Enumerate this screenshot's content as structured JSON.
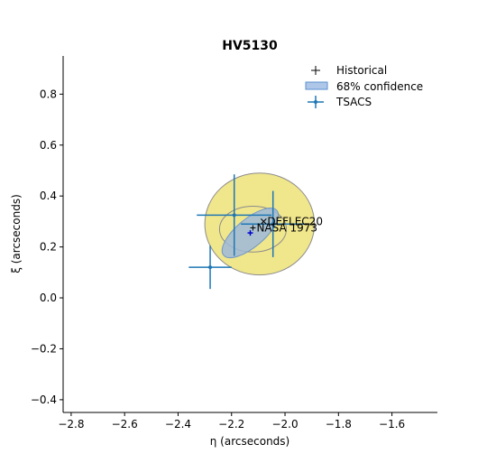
{
  "chart_data": {
    "type": "scatter",
    "title": "HV5130",
    "xlabel": "η (arcseconds)",
    "ylabel": "ξ (arcseconds)",
    "xlim": [
      -2.83,
      -1.43
    ],
    "ylim": [
      -0.45,
      0.95
    ],
    "x_ticks": [
      -2.8,
      -2.6,
      -2.4,
      -2.2,
      -2.0,
      -1.8,
      -1.6
    ],
    "x_tick_labels": [
      "−2.8",
      "−2.6",
      "−2.4",
      "−2.2",
      "−2.0",
      "−1.8",
      "−1.6"
    ],
    "y_ticks": [
      -0.4,
      -0.2,
      0.0,
      0.2,
      0.4,
      0.6,
      0.8
    ],
    "y_tick_labels": [
      "−0.4",
      "−0.2",
      "0.0",
      "0.2",
      "0.4",
      "0.6",
      "0.8"
    ],
    "spines": "left-bottom",
    "grid": false,
    "legend_placement": "top-right",
    "legend": [
      {
        "label": "Historical",
        "marker": "plus",
        "color": "#000000"
      },
      {
        "label": "68% confidence",
        "marker": "patch",
        "color": "#aec7e8"
      },
      {
        "label": "TSACS",
        "marker": "errorbar",
        "color": "#1f77b4"
      }
    ],
    "colors": {
      "tsacs": "#1f77b4",
      "confidence_fill": "#9db8d9",
      "halo_fill": "#f0e68c",
      "halo_edge": "#8c8c8c",
      "historical": "#000000",
      "mean_point": "#0000cc"
    },
    "regions": [
      {
        "type": "yellow_halo",
        "center": [
          -2.095,
          0.29
        ],
        "width": 0.41,
        "height": 0.4,
        "angle": 0
      },
      {
        "type": "gray_ring",
        "center": [
          -2.12,
          0.27
        ],
        "width": 0.25,
        "height": 0.18,
        "angle": 0
      },
      {
        "type": "confidence_ellipse",
        "center": [
          -2.13,
          0.255
        ],
        "width": 0.26,
        "height": 0.11,
        "angle": 40
      }
    ],
    "tsacs_points": [
      {
        "x": -2.28,
        "y": 0.12,
        "xerr": 0.08,
        "yerr": 0.085
      },
      {
        "x": -2.19,
        "y": 0.325,
        "xerr": 0.14,
        "yerr": 0.16
      },
      {
        "x": -2.045,
        "y": 0.29,
        "xerr": 0.12,
        "yerr": 0.13
      }
    ],
    "historical_points": [
      {
        "x": -2.08,
        "y": 0.3,
        "label": "DEFLEC20",
        "marker": "x"
      },
      {
        "x": -2.12,
        "y": 0.275,
        "label": "NASA 1973",
        "marker": "plus"
      }
    ],
    "mean_point": {
      "x": -2.13,
      "y": 0.255
    }
  }
}
